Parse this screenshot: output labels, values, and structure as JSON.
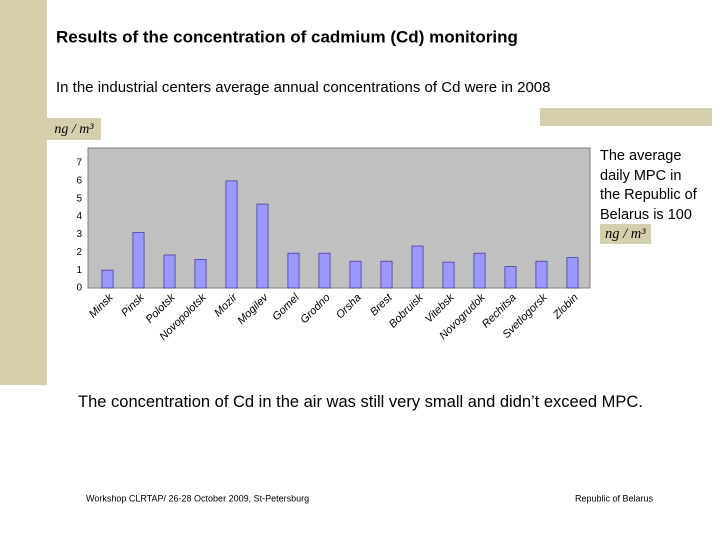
{
  "slide": {
    "title": "Results of the concentration of cadmium (Cd) monitoring",
    "subtitle": "In the industrial centers average annual concentrations of Cd were in 2008",
    "side_note": "The average daily MPC in the Republic of Belarus is 100",
    "side_note_unit": "ng / m³",
    "conclusion": "The concentration of Cd in the air was still very small and didn’t exceed MPC.",
    "footer_left": "Workshop CLRTAP/ 26-28 October 2009, St-Petersburg",
    "footer_right": "Republic of Belarus"
  },
  "chart_data": {
    "type": "bar",
    "y_unit": "ng / m³",
    "categories": [
      "Minsk",
      "Pinsk",
      "Polotsk",
      "Novopolotsk",
      "Mozir",
      "Mogilev",
      "Gomel",
      "Grodno",
      "Orsha",
      "Brest",
      "Bobruisk",
      "Vitebsk",
      "Novogrudok",
      "Rechitsa",
      "Svetlogorsk",
      "Zlobin"
    ],
    "values": [
      1.0,
      3.1,
      1.85,
      1.6,
      6.0,
      4.7,
      1.95,
      1.95,
      1.5,
      1.5,
      2.35,
      1.45,
      1.95,
      1.2,
      1.5,
      1.7
    ],
    "color": "#9999ff",
    "ylim": [
      0,
      7
    ],
    "yticks": [
      0,
      1,
      2,
      3,
      4,
      5,
      6,
      7
    ],
    "grid": false
  }
}
